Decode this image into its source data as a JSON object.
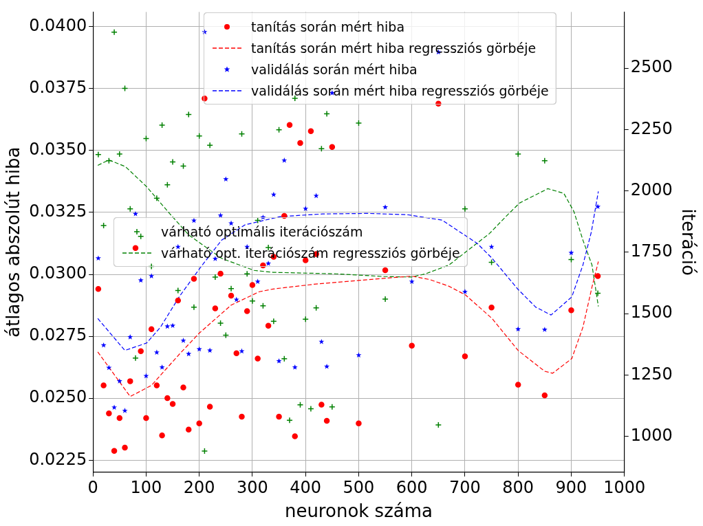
{
  "chart_data": {
    "type": "scatter",
    "xlabel": "neuronok száma",
    "ylabel": "átlagos abszolút hiba",
    "y2label": "iteráció",
    "xlim": [
      0,
      1000
    ],
    "xticks": [
      0,
      100,
      200,
      300,
      400,
      500,
      600,
      700,
      800,
      900,
      1000
    ],
    "ylim": [
      0.02201,
      0.04059
    ],
    "yticks": [
      {
        "value": 0.0225,
        "label": "0.0225"
      },
      {
        "value": 0.025,
        "label": "0.0250"
      },
      {
        "value": 0.0275,
        "label": "0.0275"
      },
      {
        "value": 0.03,
        "label": "0.0300"
      },
      {
        "value": 0.0325,
        "label": "0.0325"
      },
      {
        "value": 0.035,
        "label": "0.0350"
      },
      {
        "value": 0.0375,
        "label": "0.0375"
      },
      {
        "value": 0.04,
        "label": "0.0400"
      }
    ],
    "y2lim": [
      853,
      2729
    ],
    "y2ticks": [
      1000,
      1250,
      1500,
      1750,
      2000,
      2250,
      2500
    ],
    "grid": true,
    "legend": "top right",
    "series": [
      {
        "name": "tanítás során mért hiba",
        "type": "scatter",
        "marker": "circle",
        "color": "#ff0000",
        "x": [
          10,
          20,
          30,
          40,
          50,
          60,
          70,
          80,
          90,
          100,
          110,
          120,
          130,
          140,
          150,
          160,
          170,
          180,
          190,
          200,
          210,
          220,
          230,
          240,
          260,
          270,
          280,
          290,
          300,
          310,
          320,
          330,
          340,
          350,
          360,
          370,
          380,
          390,
          400,
          410,
          420,
          430,
          440,
          450,
          500,
          550,
          600,
          650,
          700,
          750,
          800,
          850,
          900,
          950
        ],
        "values": [
          0.02941,
          0.02552,
          0.02439,
          0.02288,
          0.0242,
          0.02301,
          0.02569,
          0.03106,
          0.0269,
          0.0242,
          0.02779,
          0.02552,
          0.0235,
          0.02501,
          0.02477,
          0.02895,
          0.02544,
          0.02374,
          0.02982,
          0.02399,
          0.0371,
          0.02466,
          0.02863,
          0.03003,
          0.02914,
          0.02682,
          0.02426,
          0.02852,
          0.02957,
          0.0266,
          0.03036,
          0.02793,
          0.03071,
          0.02426,
          0.03236,
          0.03603,
          0.02347,
          0.0353,
          0.03057,
          0.03578,
          0.03082,
          0.02474,
          0.02409,
          0.03514,
          0.02399,
          0.03017,
          0.02712,
          0.03689,
          0.02669,
          0.02866,
          0.02555,
          0.02512,
          0.02855,
          0.02993
        ]
      },
      {
        "name": "tanítás során mért hiba regressziós görbéje",
        "type": "line",
        "marker": "none",
        "line_style": "dashed",
        "color": "#ff0000",
        "x": [
          9,
          70,
          110,
          163,
          200,
          260,
          313,
          339,
          415,
          502,
          600,
          634,
          670,
          701,
          751,
          800,
          850,
          865,
          901,
          922,
          939,
          951
        ],
        "values": [
          0.02687,
          0.02507,
          0.02552,
          0.02679,
          0.02763,
          0.02876,
          0.0293,
          0.02941,
          0.0296,
          0.02976,
          0.02993,
          0.02979,
          0.02952,
          0.02917,
          0.02822,
          0.02693,
          0.02609,
          0.02601,
          0.0266,
          0.02787,
          0.02949,
          0.03052
        ]
      },
      {
        "name": "validálás során mért hiba",
        "type": "scatter",
        "marker": "star",
        "color": "#0000ff",
        "x": [
          10,
          20,
          30,
          40,
          50,
          60,
          70,
          80,
          90,
          100,
          110,
          120,
          130,
          140,
          150,
          160,
          170,
          180,
          190,
          200,
          210,
          220,
          230,
          240,
          250,
          260,
          270,
          280,
          290,
          310,
          320,
          330,
          340,
          350,
          360,
          380,
          400,
          420,
          430,
          440,
          450,
          500,
          550,
          600,
          650,
          700,
          750,
          800,
          850,
          900,
          950
        ],
        "values": [
          0.03065,
          0.02714,
          0.02623,
          0.02463,
          0.02569,
          0.0245,
          0.02747,
          0.03244,
          0.02976,
          0.0259,
          0.02993,
          0.02685,
          0.02625,
          0.0279,
          0.02793,
          0.03111,
          0.02733,
          0.02679,
          0.03217,
          0.02698,
          0.03978,
          0.02693,
          0.03063,
          0.03238,
          0.03384,
          0.03206,
          0.02898,
          0.0269,
          0.03111,
          0.02971,
          0.0323,
          0.03044,
          0.03322,
          0.0265,
          0.0346,
          0.02625,
          0.03265,
          0.03317,
          0.02728,
          0.02628,
          0.03732,
          0.02674,
          0.03271,
          0.02971,
          0.03897,
          0.0293,
          0.03111,
          0.02779,
          0.02777,
          0.03087,
          0.03273
        ]
      },
      {
        "name": "validálás során mért hiba regressziós görbéje",
        "type": "line",
        "marker": "none",
        "line_style": "dashed",
        "color": "#0000ff",
        "x": [
          9,
          60,
          101,
          127,
          163,
          203,
          242,
          286,
          352,
          432,
          518,
          591,
          657,
          723,
          751,
          800,
          833,
          862,
          901,
          922,
          938,
          951
        ],
        "values": [
          0.02822,
          0.02693,
          0.02723,
          0.02787,
          0.02912,
          0.0303,
          0.03138,
          0.032,
          0.03233,
          0.03244,
          0.03246,
          0.03241,
          0.03219,
          0.03125,
          0.03065,
          0.02939,
          0.02868,
          0.02836,
          0.02909,
          0.03038,
          0.03173,
          0.03335
        ]
      },
      {
        "name": "várható optimális iterációszám",
        "type": "scatter",
        "marker": "cross",
        "axis": "y2",
        "color": "#008000",
        "x": [
          10,
          20,
          30,
          40,
          50,
          60,
          70,
          80,
          90,
          100,
          110,
          120,
          130,
          140,
          150,
          160,
          170,
          180,
          190,
          200,
          210,
          220,
          230,
          240,
          250,
          260,
          280,
          290,
          300,
          310,
          320,
          330,
          340,
          350,
          360,
          370,
          380,
          390,
          400,
          410,
          420,
          430,
          440,
          450,
          500,
          550,
          650,
          700,
          750,
          800,
          850,
          900,
          950
        ],
        "values": [
          2148,
          1859,
          2123,
          2647,
          2150,
          2418,
          1927,
          1319,
          1815,
          2213,
          1692,
          1970,
          2268,
          2025,
          2118,
          1594,
          2101,
          2311,
          1526,
          2224,
          940,
          2186,
          1649,
          1461,
          1412,
          1602,
          2232,
          1662,
          1551,
          1880,
          1532,
          1769,
          1469,
          2249,
          1316,
          1065,
          2377,
          1128,
          1477,
          1112,
          1523,
          2172,
          2314,
          1120,
          2276,
          1559,
          1046,
          1927,
          1709,
          2150,
          2123,
          1720,
          1583
        ]
      },
      {
        "name": "várható opt. iterációszám regressziós görbéje",
        "type": "line",
        "marker": "none",
        "line_style": "dashed",
        "axis": "y2",
        "color": "#008000",
        "x": [
          9,
          30,
          61,
          101,
          144,
          180,
          242,
          303,
          339,
          458,
          547,
          600,
          626,
          670,
          746,
          780,
          803,
          856,
          886,
          905,
          922,
          939,
          951
        ],
        "values": [
          2104,
          2126,
          2099,
          2017,
          1908,
          1821,
          1725,
          1676,
          1668,
          1662,
          1651,
          1649,
          1662,
          1698,
          1826,
          1902,
          1951,
          2009,
          1990,
          1916,
          1799,
          1698,
          1529
        ]
      }
    ]
  }
}
